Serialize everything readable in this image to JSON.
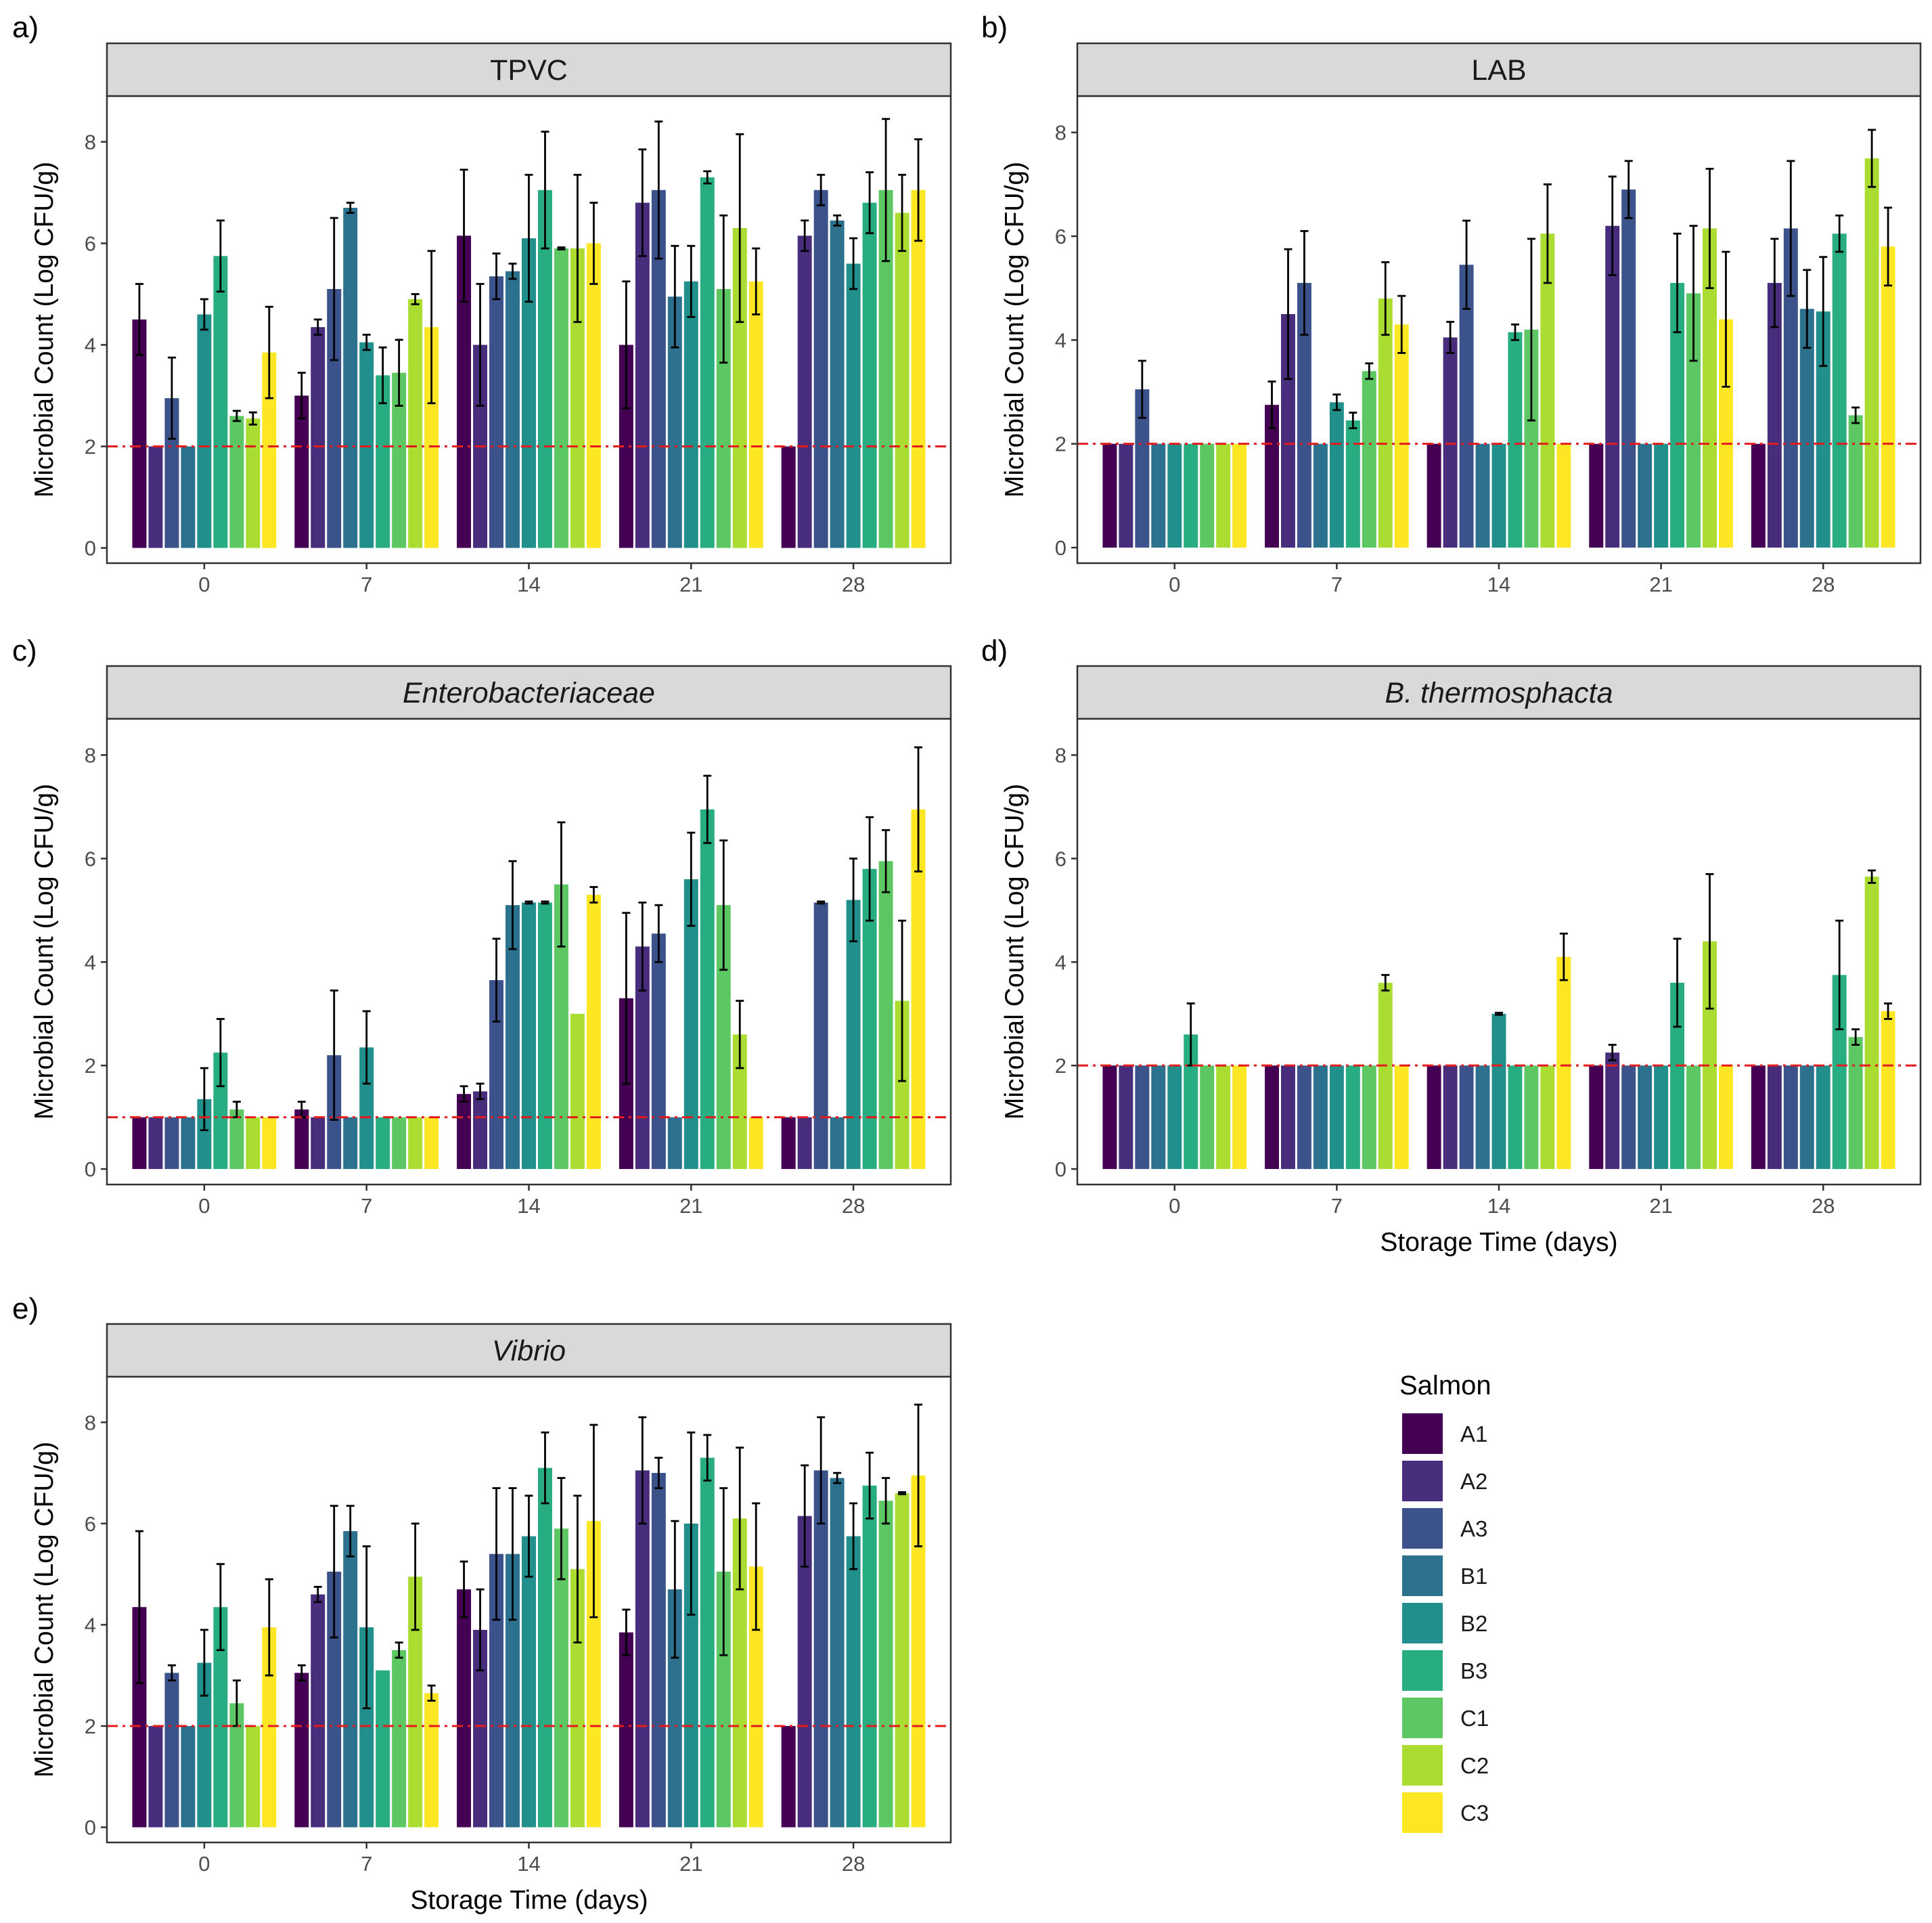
{
  "figure": {
    "x_title": "Storage Time (days)",
    "y_title": "Microbial Count (Log CFU/g)",
    "legend_title": "Salmon",
    "colors": [
      "#440154",
      "#472D7B",
      "#3B528B",
      "#2C728E",
      "#21908C",
      "#27AD81",
      "#5DC863",
      "#AADC32",
      "#FDE725"
    ],
    "reference_line_color": "#E41A1C"
  },
  "chart_data": [
    {
      "panel": "a)",
      "title": "TPVC",
      "italic": false,
      "type": "bar",
      "categories": [
        "0",
        "7",
        "14",
        "21",
        "28"
      ],
      "groups": [
        "A1",
        "A2",
        "A3",
        "B1",
        "B2",
        "B3",
        "C1",
        "C2",
        "C3"
      ],
      "ylim": [
        -0.3,
        8.9
      ],
      "yticks": [
        0,
        2,
        4,
        6,
        8
      ],
      "detection_limit": 2,
      "series": [
        {
          "name": "A1",
          "values": [
            4.5,
            3.0,
            6.15,
            4.0,
            2.0
          ],
          "errors": [
            0.7,
            0.45,
            1.3,
            1.25,
            0
          ]
        },
        {
          "name": "A2",
          "values": [
            2.0,
            4.35,
            4.0,
            6.8,
            6.15
          ],
          "errors": [
            0,
            0.15,
            1.2,
            1.05,
            0.3
          ]
        },
        {
          "name": "A3",
          "values": [
            2.95,
            5.1,
            5.35,
            7.05,
            7.05
          ],
          "errors": [
            0.8,
            1.4,
            0.45,
            1.35,
            0.3
          ]
        },
        {
          "name": "B1",
          "values": [
            2.0,
            6.7,
            5.45,
            4.95,
            6.45
          ],
          "errors": [
            0,
            0.1,
            0.15,
            1.0,
            0.1
          ]
        },
        {
          "name": "B2",
          "values": [
            4.6,
            4.05,
            6.1,
            5.25,
            5.6
          ],
          "errors": [
            0.3,
            0.15,
            1.25,
            0.7,
            0.5
          ]
        },
        {
          "name": "B3",
          "values": [
            5.75,
            3.4,
            7.05,
            7.3,
            6.8
          ],
          "errors": [
            0.7,
            0.55,
            1.15,
            0.12,
            0.6
          ]
        },
        {
          "name": "C1",
          "values": [
            2.6,
            3.45,
            5.9,
            5.1,
            7.05
          ],
          "errors": [
            0.1,
            0.65,
            0.02,
            1.45,
            1.4
          ]
        },
        {
          "name": "C2",
          "values": [
            2.55,
            4.9,
            5.9,
            6.3,
            6.6
          ],
          "errors": [
            0.12,
            0.1,
            1.45,
            1.85,
            0.75
          ]
        },
        {
          "name": "C3",
          "values": [
            3.85,
            4.35,
            6.0,
            5.25,
            7.05
          ],
          "errors": [
            0.9,
            1.5,
            0.8,
            0.65,
            1.0
          ]
        }
      ]
    },
    {
      "panel": "b)",
      "title": "LAB",
      "italic": false,
      "type": "bar",
      "categories": [
        "0",
        "7",
        "14",
        "21",
        "28"
      ],
      "groups": [
        "A1",
        "A2",
        "A3",
        "B1",
        "B2",
        "B3",
        "C1",
        "C2",
        "C3"
      ],
      "ylim": [
        -0.3,
        8.7
      ],
      "yticks": [
        0,
        2,
        4,
        6,
        8
      ],
      "detection_limit": 2,
      "series": [
        {
          "name": "A1",
          "values": [
            2.0,
            2.75,
            2.0,
            2.0,
            2.0
          ],
          "errors": [
            0,
            0.45,
            0,
            0,
            0
          ]
        },
        {
          "name": "A2",
          "values": [
            2.0,
            4.5,
            4.05,
            6.2,
            5.1
          ],
          "errors": [
            0,
            1.25,
            0.3,
            0.95,
            0.85
          ]
        },
        {
          "name": "A3",
          "values": [
            3.05,
            5.1,
            5.45,
            6.9,
            6.15
          ],
          "errors": [
            0.55,
            1.0,
            0.85,
            0.55,
            1.3
          ]
        },
        {
          "name": "B1",
          "values": [
            2.0,
            2.0,
            2.0,
            2.0,
            4.6
          ],
          "errors": [
            0,
            0,
            0,
            0,
            0.75
          ]
        },
        {
          "name": "B2",
          "values": [
            2.0,
            2.8,
            2.0,
            2.0,
            4.55
          ],
          "errors": [
            0,
            0.15,
            0,
            0,
            1.05
          ]
        },
        {
          "name": "B3",
          "values": [
            2.0,
            2.45,
            4.15,
            5.1,
            6.05
          ],
          "errors": [
            0,
            0.15,
            0.15,
            0.95,
            0.35
          ]
        },
        {
          "name": "C1",
          "values": [
            2.0,
            3.4,
            4.2,
            4.9,
            2.55
          ],
          "errors": [
            0,
            0.15,
            1.75,
            1.3,
            0.15
          ]
        },
        {
          "name": "C2",
          "values": [
            2.0,
            4.8,
            6.05,
            6.15,
            7.5
          ],
          "errors": [
            0,
            0.7,
            0.95,
            1.15,
            0.55
          ]
        },
        {
          "name": "C3",
          "values": [
            2.0,
            4.3,
            2.0,
            4.4,
            5.8
          ],
          "errors": [
            0,
            0.55,
            0,
            1.3,
            0.75
          ]
        }
      ]
    },
    {
      "panel": "c)",
      "title": "Enterobacteriaceae",
      "italic": true,
      "type": "bar",
      "categories": [
        "0",
        "7",
        "14",
        "21",
        "28"
      ],
      "groups": [
        "A1",
        "A2",
        "A3",
        "B1",
        "B2",
        "B3",
        "C1",
        "C2",
        "C3"
      ],
      "ylim": [
        -0.3,
        8.7
      ],
      "yticks": [
        0,
        2,
        4,
        6,
        8
      ],
      "detection_limit": 1,
      "series": [
        {
          "name": "A1",
          "values": [
            1.0,
            1.15,
            1.45,
            3.3,
            1.0
          ],
          "errors": [
            0,
            0.15,
            0.15,
            1.65,
            0
          ]
        },
        {
          "name": "A2",
          "values": [
            1.0,
            1.0,
            1.5,
            4.3,
            1.0
          ],
          "errors": [
            0,
            0,
            0.15,
            0.85,
            0
          ]
        },
        {
          "name": "A3",
          "values": [
            1.0,
            2.2,
            3.65,
            4.55,
            5.15
          ],
          "errors": [
            0,
            1.25,
            0.8,
            0.55,
            0.02
          ]
        },
        {
          "name": "B1",
          "values": [
            1.0,
            1.0,
            5.1,
            1.0,
            1.0
          ],
          "errors": [
            0,
            0,
            0.85,
            0,
            0
          ]
        },
        {
          "name": "B2",
          "values": [
            1.35,
            2.35,
            5.15,
            5.6,
            5.2
          ],
          "errors": [
            0.6,
            0.7,
            0.02,
            0.9,
            0.8
          ]
        },
        {
          "name": "B3",
          "values": [
            2.25,
            1.0,
            5.15,
            6.95,
            5.8
          ],
          "errors": [
            0.65,
            0,
            0.02,
            0.65,
            1.0
          ]
        },
        {
          "name": "C1",
          "values": [
            1.15,
            1.0,
            5.5,
            5.1,
            5.95
          ],
          "errors": [
            0.15,
            0,
            1.2,
            1.25,
            0.6
          ]
        },
        {
          "name": "C2",
          "values": [
            1.0,
            1.0,
            3.0,
            2.6,
            3.25
          ],
          "errors": [
            0,
            0,
            0,
            0.65,
            1.55
          ]
        },
        {
          "name": "C3",
          "values": [
            1.0,
            1.0,
            5.3,
            1.0,
            6.95
          ],
          "errors": [
            0,
            0,
            0.15,
            0,
            1.2
          ]
        }
      ]
    },
    {
      "panel": "d)",
      "title": "B. thermosphacta",
      "italic": true,
      "type": "bar",
      "categories": [
        "0",
        "7",
        "14",
        "21",
        "28"
      ],
      "groups": [
        "A1",
        "A2",
        "A3",
        "B1",
        "B2",
        "B3",
        "C1",
        "C2",
        "C3"
      ],
      "ylim": [
        -0.3,
        8.7
      ],
      "yticks": [
        0,
        2,
        4,
        6,
        8
      ],
      "detection_limit": 2,
      "series": [
        {
          "name": "A1",
          "values": [
            2.0,
            2.0,
            2.0,
            2.0,
            2.0
          ],
          "errors": [
            0,
            0,
            0,
            0,
            0
          ]
        },
        {
          "name": "A2",
          "values": [
            2.0,
            2.0,
            2.0,
            2.25,
            2.0
          ],
          "errors": [
            0,
            0,
            0,
            0.15,
            0
          ]
        },
        {
          "name": "A3",
          "values": [
            2.0,
            2.0,
            2.0,
            2.0,
            2.0
          ],
          "errors": [
            0,
            0,
            0,
            0,
            0
          ]
        },
        {
          "name": "B1",
          "values": [
            2.0,
            2.0,
            2.0,
            2.0,
            2.0
          ],
          "errors": [
            0,
            0,
            0,
            0,
            0
          ]
        },
        {
          "name": "B2",
          "values": [
            2.0,
            2.0,
            3.0,
            2.0,
            2.0
          ],
          "errors": [
            0,
            0,
            0.02,
            0,
            0
          ]
        },
        {
          "name": "B3",
          "values": [
            2.6,
            2.0,
            2.0,
            3.6,
            3.75
          ],
          "errors": [
            0.6,
            0,
            0,
            0.85,
            1.05
          ]
        },
        {
          "name": "C1",
          "values": [
            2.0,
            2.0,
            2.0,
            2.0,
            2.55
          ],
          "errors": [
            0,
            0,
            0,
            0,
            0.15
          ]
        },
        {
          "name": "C2",
          "values": [
            2.0,
            3.6,
            2.0,
            4.4,
            5.65
          ],
          "errors": [
            0,
            0.15,
            0,
            1.3,
            0.12
          ]
        },
        {
          "name": "C3",
          "values": [
            2.0,
            2.0,
            4.1,
            2.0,
            3.05
          ],
          "errors": [
            0,
            0,
            0.45,
            0,
            0.15
          ]
        }
      ]
    },
    {
      "panel": "e)",
      "title": "Vibrio",
      "italic": true,
      "type": "bar",
      "categories": [
        "0",
        "7",
        "14",
        "21",
        "28"
      ],
      "groups": [
        "A1",
        "A2",
        "A3",
        "B1",
        "B2",
        "B3",
        "C1",
        "C2",
        "C3"
      ],
      "ylim": [
        -0.3,
        8.9
      ],
      "yticks": [
        0,
        2,
        4,
        6,
        8
      ],
      "detection_limit": 2,
      "series": [
        {
          "name": "A1",
          "values": [
            4.35,
            3.05,
            4.7,
            3.85,
            2.0
          ],
          "errors": [
            1.5,
            0.15,
            0.55,
            0.45,
            0
          ]
        },
        {
          "name": "A2",
          "values": [
            2.0,
            4.6,
            3.9,
            7.05,
            6.15
          ],
          "errors": [
            0,
            0.15,
            0.8,
            1.05,
            1.0
          ]
        },
        {
          "name": "A3",
          "values": [
            3.05,
            5.05,
            5.4,
            7.0,
            7.05
          ],
          "errors": [
            0.15,
            1.3,
            1.3,
            0.3,
            1.05
          ]
        },
        {
          "name": "B1",
          "values": [
            2.0,
            5.85,
            5.4,
            4.7,
            6.9
          ],
          "errors": [
            0,
            0.5,
            1.3,
            1.35,
            0.1
          ]
        },
        {
          "name": "B2",
          "values": [
            3.25,
            3.95,
            5.75,
            6.0,
            5.75
          ],
          "errors": [
            0.65,
            1.6,
            0.8,
            1.8,
            0.65
          ]
        },
        {
          "name": "B3",
          "values": [
            4.35,
            3.1,
            7.1,
            7.3,
            6.75
          ],
          "errors": [
            0.85,
            0,
            0.7,
            0.45,
            0.65
          ]
        },
        {
          "name": "C1",
          "values": [
            2.45,
            3.5,
            5.9,
            5.05,
            6.45
          ],
          "errors": [
            0.45,
            0.15,
            1.0,
            1.65,
            0.45
          ]
        },
        {
          "name": "C2",
          "values": [
            2.0,
            4.95,
            5.1,
            6.1,
            6.6
          ],
          "errors": [
            0,
            1.05,
            1.45,
            1.4,
            0.02
          ]
        },
        {
          "name": "C3",
          "values": [
            3.95,
            2.65,
            6.05,
            5.15,
            6.95
          ],
          "errors": [
            0.95,
            0.15,
            1.9,
            1.25,
            1.4
          ]
        }
      ]
    }
  ]
}
